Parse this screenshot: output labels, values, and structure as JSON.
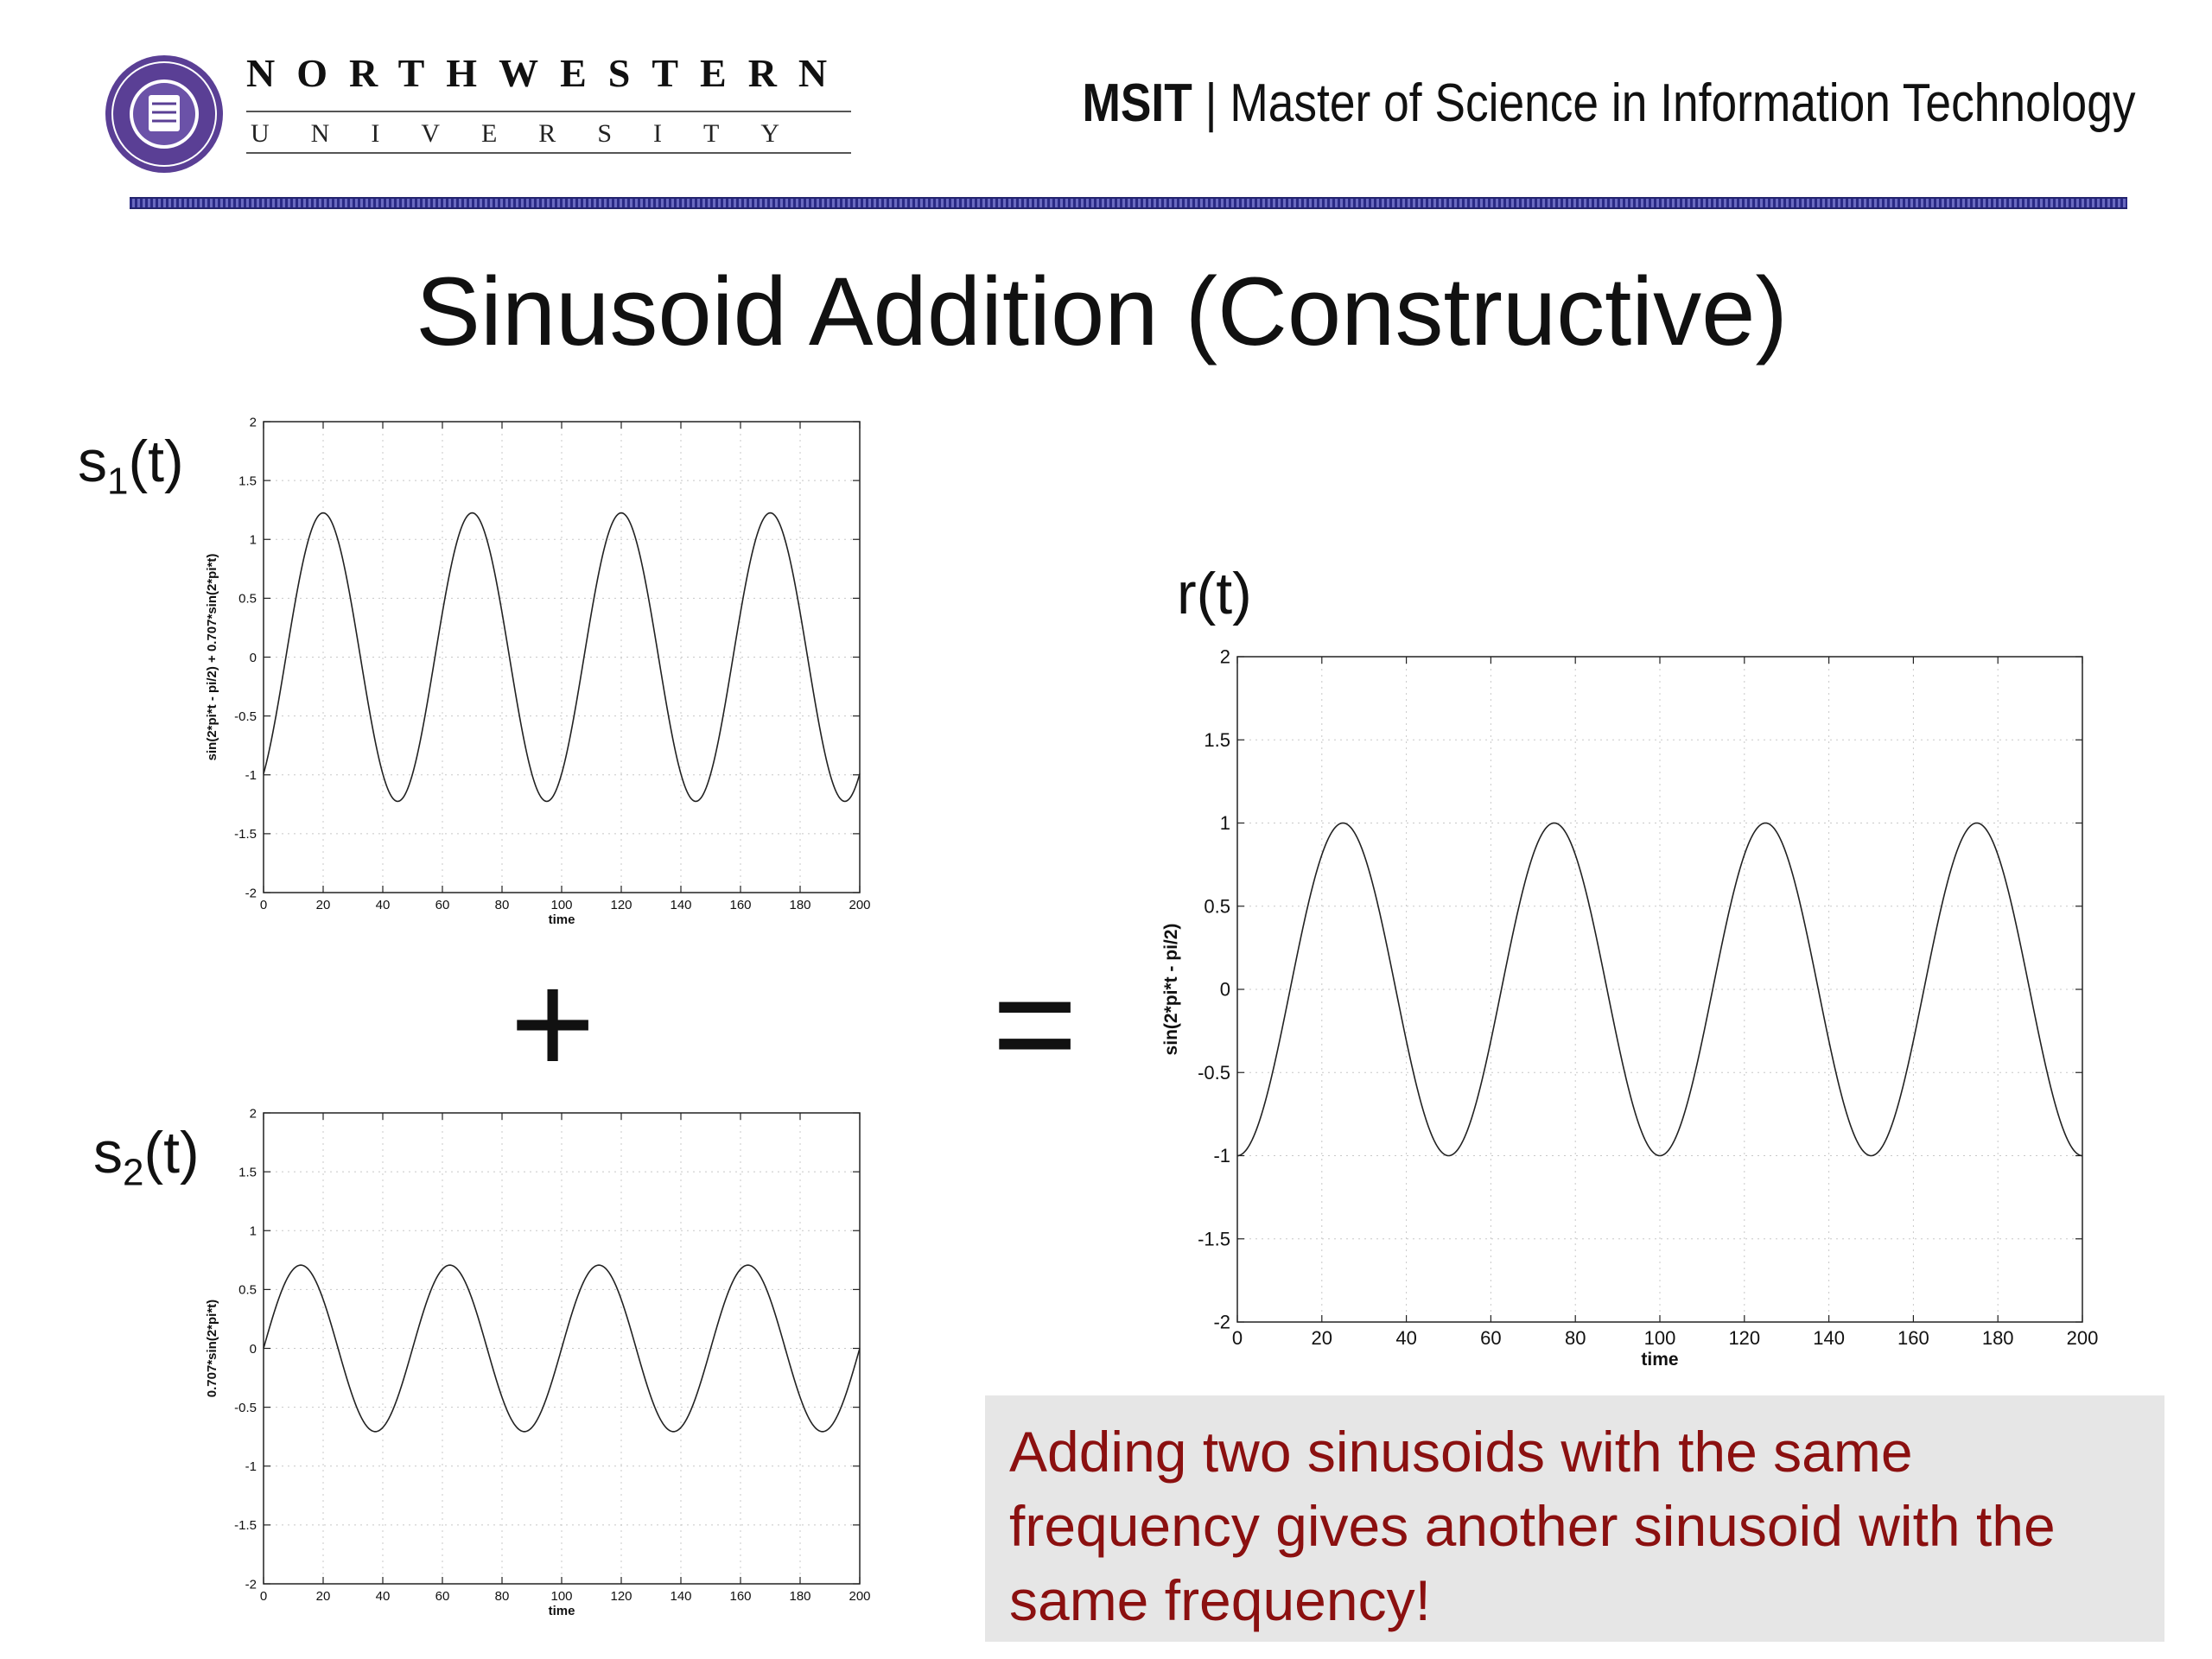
{
  "header": {
    "university_name": "NORTHWESTERN",
    "university_sub": "UNIVERSITY",
    "program_short": "MSIT",
    "separator": "|",
    "program_full": "Master of Science in Information Technology",
    "logo_icon": "university-seal-icon",
    "colors": {
      "brand": "#4b2e83",
      "divider": "#2a2a86"
    }
  },
  "slide": {
    "title": "Sinusoid Addition (Constructive)",
    "note": "Adding two sinusoids with the same frequency gives another sinusoid with the same frequency!",
    "note_color": "#8b1010",
    "operators": {
      "plus": "+",
      "equals": "="
    },
    "labels": {
      "s1": {
        "base": "s",
        "sub": "1",
        "suffix": "(t)"
      },
      "s2": {
        "base": "s",
        "sub": "2",
        "suffix": "(t)"
      },
      "r": "r(t)"
    }
  },
  "chart_data": [
    {
      "id": "s1",
      "type": "line",
      "xlabel": "time",
      "ylabel": "sin(2*pi*t - pi/2) + 0.707*sin(2*pi*t)",
      "xlim": [
        0,
        200
      ],
      "ylim": [
        -2,
        2
      ],
      "xticks": [
        0,
        20,
        40,
        60,
        80,
        100,
        120,
        140,
        160,
        180,
        200
      ],
      "yticks": [
        -2,
        -1.5,
        -1,
        -0.5,
        0,
        0.5,
        1,
        1.5,
        2
      ],
      "grid": true,
      "series": [
        {
          "amplitude": 1.225,
          "period": 50,
          "peaks_at": [
            20,
            70,
            120,
            170
          ],
          "troughs_at": [
            45,
            95,
            145,
            195
          ],
          "start_value": -1,
          "end_value": -1
        }
      ]
    },
    {
      "id": "s2",
      "type": "line",
      "xlabel": "time",
      "ylabel": "0.707*sin(2*pi*t)",
      "xlim": [
        0,
        200
      ],
      "ylim": [
        -2,
        2
      ],
      "xticks": [
        0,
        20,
        40,
        60,
        80,
        100,
        120,
        140,
        160,
        180,
        200
      ],
      "yticks": [
        -2,
        -1.5,
        -1,
        -0.5,
        0,
        0.5,
        1,
        1.5,
        2
      ],
      "grid": true,
      "series": [
        {
          "amplitude": 0.707,
          "period": 50,
          "peaks_at": [
            12.5,
            62.5,
            112.5,
            162.5
          ],
          "troughs_at": [
            37.5,
            87.5,
            137.5,
            187.5
          ],
          "start_value": 0,
          "end_value": 0
        }
      ]
    },
    {
      "id": "r",
      "type": "line",
      "xlabel": "time",
      "ylabel": "sin(2*pi*t - pi/2)",
      "xlim": [
        0,
        200
      ],
      "ylim": [
        -2,
        2
      ],
      "xticks": [
        0,
        20,
        40,
        60,
        80,
        100,
        120,
        140,
        160,
        180,
        200
      ],
      "yticks": [
        -2,
        -1.5,
        -1,
        -0.5,
        0,
        0.5,
        1,
        1.5,
        2
      ],
      "grid": true,
      "series": [
        {
          "amplitude": 1,
          "period": 50,
          "peaks_at": [
            25,
            75,
            125,
            175
          ],
          "troughs_at": [
            0,
            50,
            100,
            150,
            200
          ],
          "start_value": -1,
          "end_value": -1
        }
      ]
    }
  ]
}
